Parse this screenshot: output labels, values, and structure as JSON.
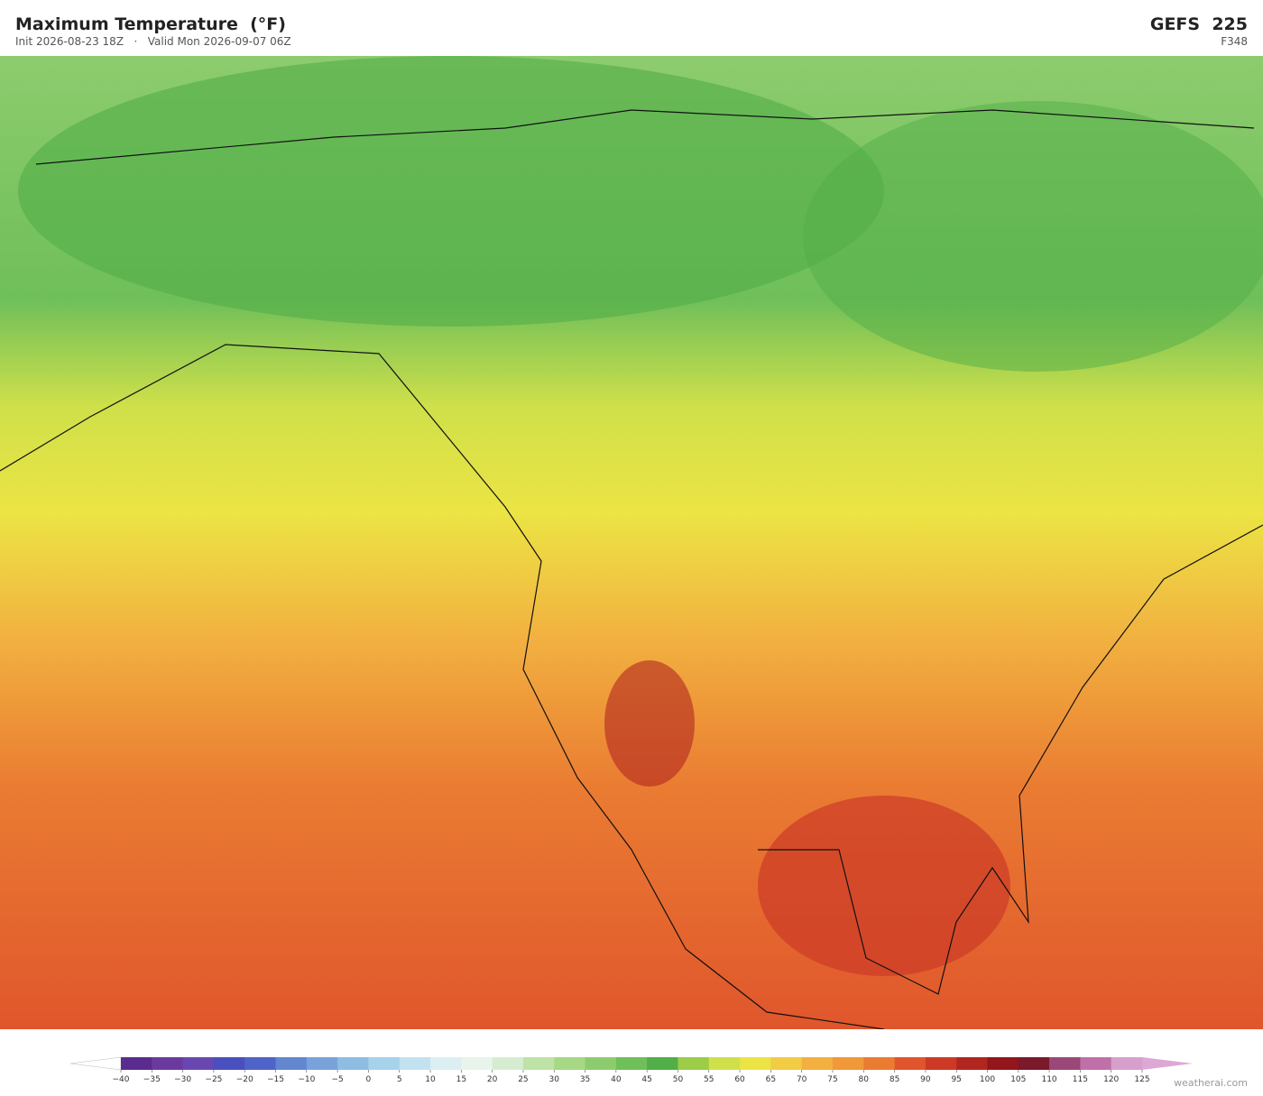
{
  "header": {
    "title": "Maximum Temperature  (°F)",
    "init": "Init 2026-08-23 18Z",
    "valid": "Valid Mon 2026-09-07 06Z",
    "model": "GEFS  225",
    "forecast_hour": "F348"
  },
  "colorbar": {
    "ticks": [
      {
        "value": -40,
        "label": "−40"
      },
      {
        "value": -35,
        "label": "−35"
      },
      {
        "value": -30,
        "label": "−30"
      },
      {
        "value": -25,
        "label": "−25"
      },
      {
        "value": -20,
        "label": "−20"
      },
      {
        "value": -15,
        "label": "−15"
      },
      {
        "value": -10,
        "label": "−10"
      },
      {
        "value": -5,
        "label": "−5"
      },
      0,
      5,
      10,
      15,
      20,
      25,
      30,
      35,
      40,
      45,
      50,
      55,
      60,
      65,
      70,
      75,
      80,
      85,
      90,
      95,
      100,
      105,
      110,
      115,
      120,
      125
    ],
    "colors": [
      "#5b2c8f",
      "#6a3a9e",
      "#6848b0",
      "#4a4fc0",
      "#4f64c8",
      "#6386d0",
      "#7aa2da",
      "#8fbde2",
      "#a6d2ea",
      "#c2e2ef",
      "#dbeff3",
      "#e8f4ec",
      "#d5ecd0",
      "#bfe2a6",
      "#a6d885",
      "#8dcc6e",
      "#6fbf5a",
      "#52ae48",
      "#9ccc48",
      "#cfe04a",
      "#ece444",
      "#f2cc44",
      "#f2b040",
      "#f0983a",
      "#ea7c32",
      "#e0562c",
      "#cc3a26",
      "#b22620",
      "#92161c",
      "#7a1a2a",
      "#9a4878",
      "#c070a8",
      "#d7a0cc"
    ],
    "under_color": "#ffffff",
    "over_color": "#dea8d6"
  },
  "footer": {
    "credit": "weatherai.com"
  }
}
